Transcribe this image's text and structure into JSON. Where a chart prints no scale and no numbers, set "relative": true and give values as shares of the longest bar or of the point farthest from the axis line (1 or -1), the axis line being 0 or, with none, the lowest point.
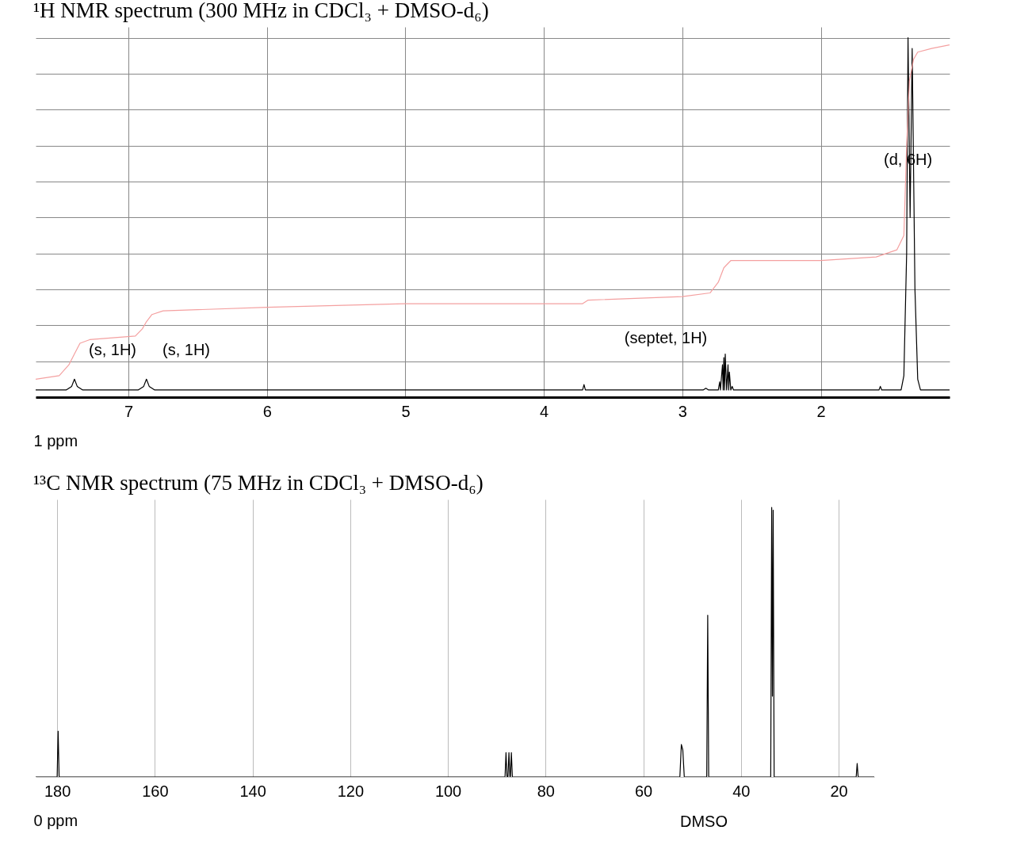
{
  "chart_data": [
    {
      "type": "line",
      "title": "¹H NMR spectrum (300 MHz in CDCl₃ + DMSO-d₆)",
      "xlabel": "1 ppm",
      "relative": true,
      "xlim": [
        7.67,
        1.07
      ],
      "xticks": [
        7,
        6,
        5,
        4,
        3,
        2
      ],
      "grid": true,
      "tick_labels": "x",
      "series": [
        {
          "color": "#000000",
          "x": [
            7.67,
            7.45,
            7.41,
            7.39,
            7.37,
            7.33,
            6.93,
            6.89,
            6.87,
            6.85,
            6.81,
            3.72,
            3.71,
            3.7,
            2.85,
            2.83,
            2.81,
            2.74,
            2.73,
            2.725,
            2.71,
            2.705,
            2.7,
            2.695,
            2.69,
            2.68,
            2.67,
            2.665,
            2.66,
            2.65,
            2.64,
            2.63,
            1.58,
            1.57,
            1.56,
            1.42,
            1.4,
            1.38,
            1.37,
            1.355,
            1.34,
            1.32,
            1.3,
            1.28,
            1.07
          ],
          "values": [
            0.02,
            0.02,
            0.03,
            0.05,
            0.03,
            0.02,
            0.02,
            0.03,
            0.05,
            0.03,
            0.02,
            0.02,
            0.035,
            0.02,
            0.02,
            0.025,
            0.02,
            0.02,
            0.043,
            0.02,
            0.09,
            0.02,
            0.11,
            0.02,
            0.12,
            0.02,
            0.09,
            0.02,
            0.07,
            0.02,
            0.03,
            0.02,
            0.02,
            0.03,
            0.02,
            0.02,
            0.06,
            0.4,
            1.0,
            0.5,
            0.97,
            0.3,
            0.05,
            0.02,
            0.02
          ]
        },
        {
          "color": "#f4a0a0",
          "x": [
            7.67,
            7.5,
            7.43,
            7.39,
            7.35,
            7.28,
            6.95,
            6.9,
            6.87,
            6.83,
            6.75,
            6.0,
            5.0,
            4.0,
            3.72,
            3.68,
            3.0,
            2.8,
            2.74,
            2.7,
            2.65,
            2.55,
            2.0,
            1.6,
            1.45,
            1.4,
            1.38,
            1.36,
            1.33,
            1.3,
            1.2,
            1.07
          ],
          "values": [
            0.05,
            0.06,
            0.09,
            0.12,
            0.15,
            0.16,
            0.17,
            0.19,
            0.21,
            0.23,
            0.24,
            0.25,
            0.26,
            0.26,
            0.26,
            0.27,
            0.28,
            0.29,
            0.32,
            0.36,
            0.38,
            0.38,
            0.38,
            0.39,
            0.41,
            0.45,
            0.7,
            0.88,
            0.94,
            0.96,
            0.97,
            0.98
          ]
        }
      ],
      "annotations": [
        "(s, 1H)",
        "(s, 1H)",
        "(septet, 1H)",
        {
          "text": "(d, 6H)",
          "x": 1.37,
          "y": 0.66
        }
      ]
    },
    {
      "type": "line",
      "title": "¹³C NMR spectrum (75 MHz in CDCl₃ + DMSO-d₆)",
      "xlabel": "0 ppm",
      "relative": true,
      "xlim": [
        184.4,
        12.7
      ],
      "xticks": [
        180,
        160,
        140,
        120,
        100,
        80,
        60,
        40,
        20
      ],
      "grid": "x",
      "tick_labels": "x",
      "series": [
        {
          "color": "#000000",
          "x": [
            184.4,
            180.0,
            179.8,
            179.6,
            88.3,
            88.1,
            87.9,
            87.7,
            87.5,
            87.3,
            87.2,
            87.0,
            86.8,
            52.5,
            52.2,
            51.9,
            51.6,
            47.0,
            46.8,
            46.6,
            33.9,
            33.7,
            33.55,
            33.4,
            33.2,
            16.4,
            16.2,
            16.0,
            12.7
          ],
          "values": [
            0,
            0,
            0.17,
            0,
            0,
            0.09,
            0,
            0,
            0.09,
            0,
            0,
            0.09,
            0,
            0,
            0.12,
            0.1,
            0,
            0,
            0.6,
            0,
            0,
            1.0,
            0.3,
            0.99,
            0,
            0,
            0.05,
            0,
            0
          ]
        }
      ],
      "annotations": [
        "DMSO"
      ]
    }
  ]
}
